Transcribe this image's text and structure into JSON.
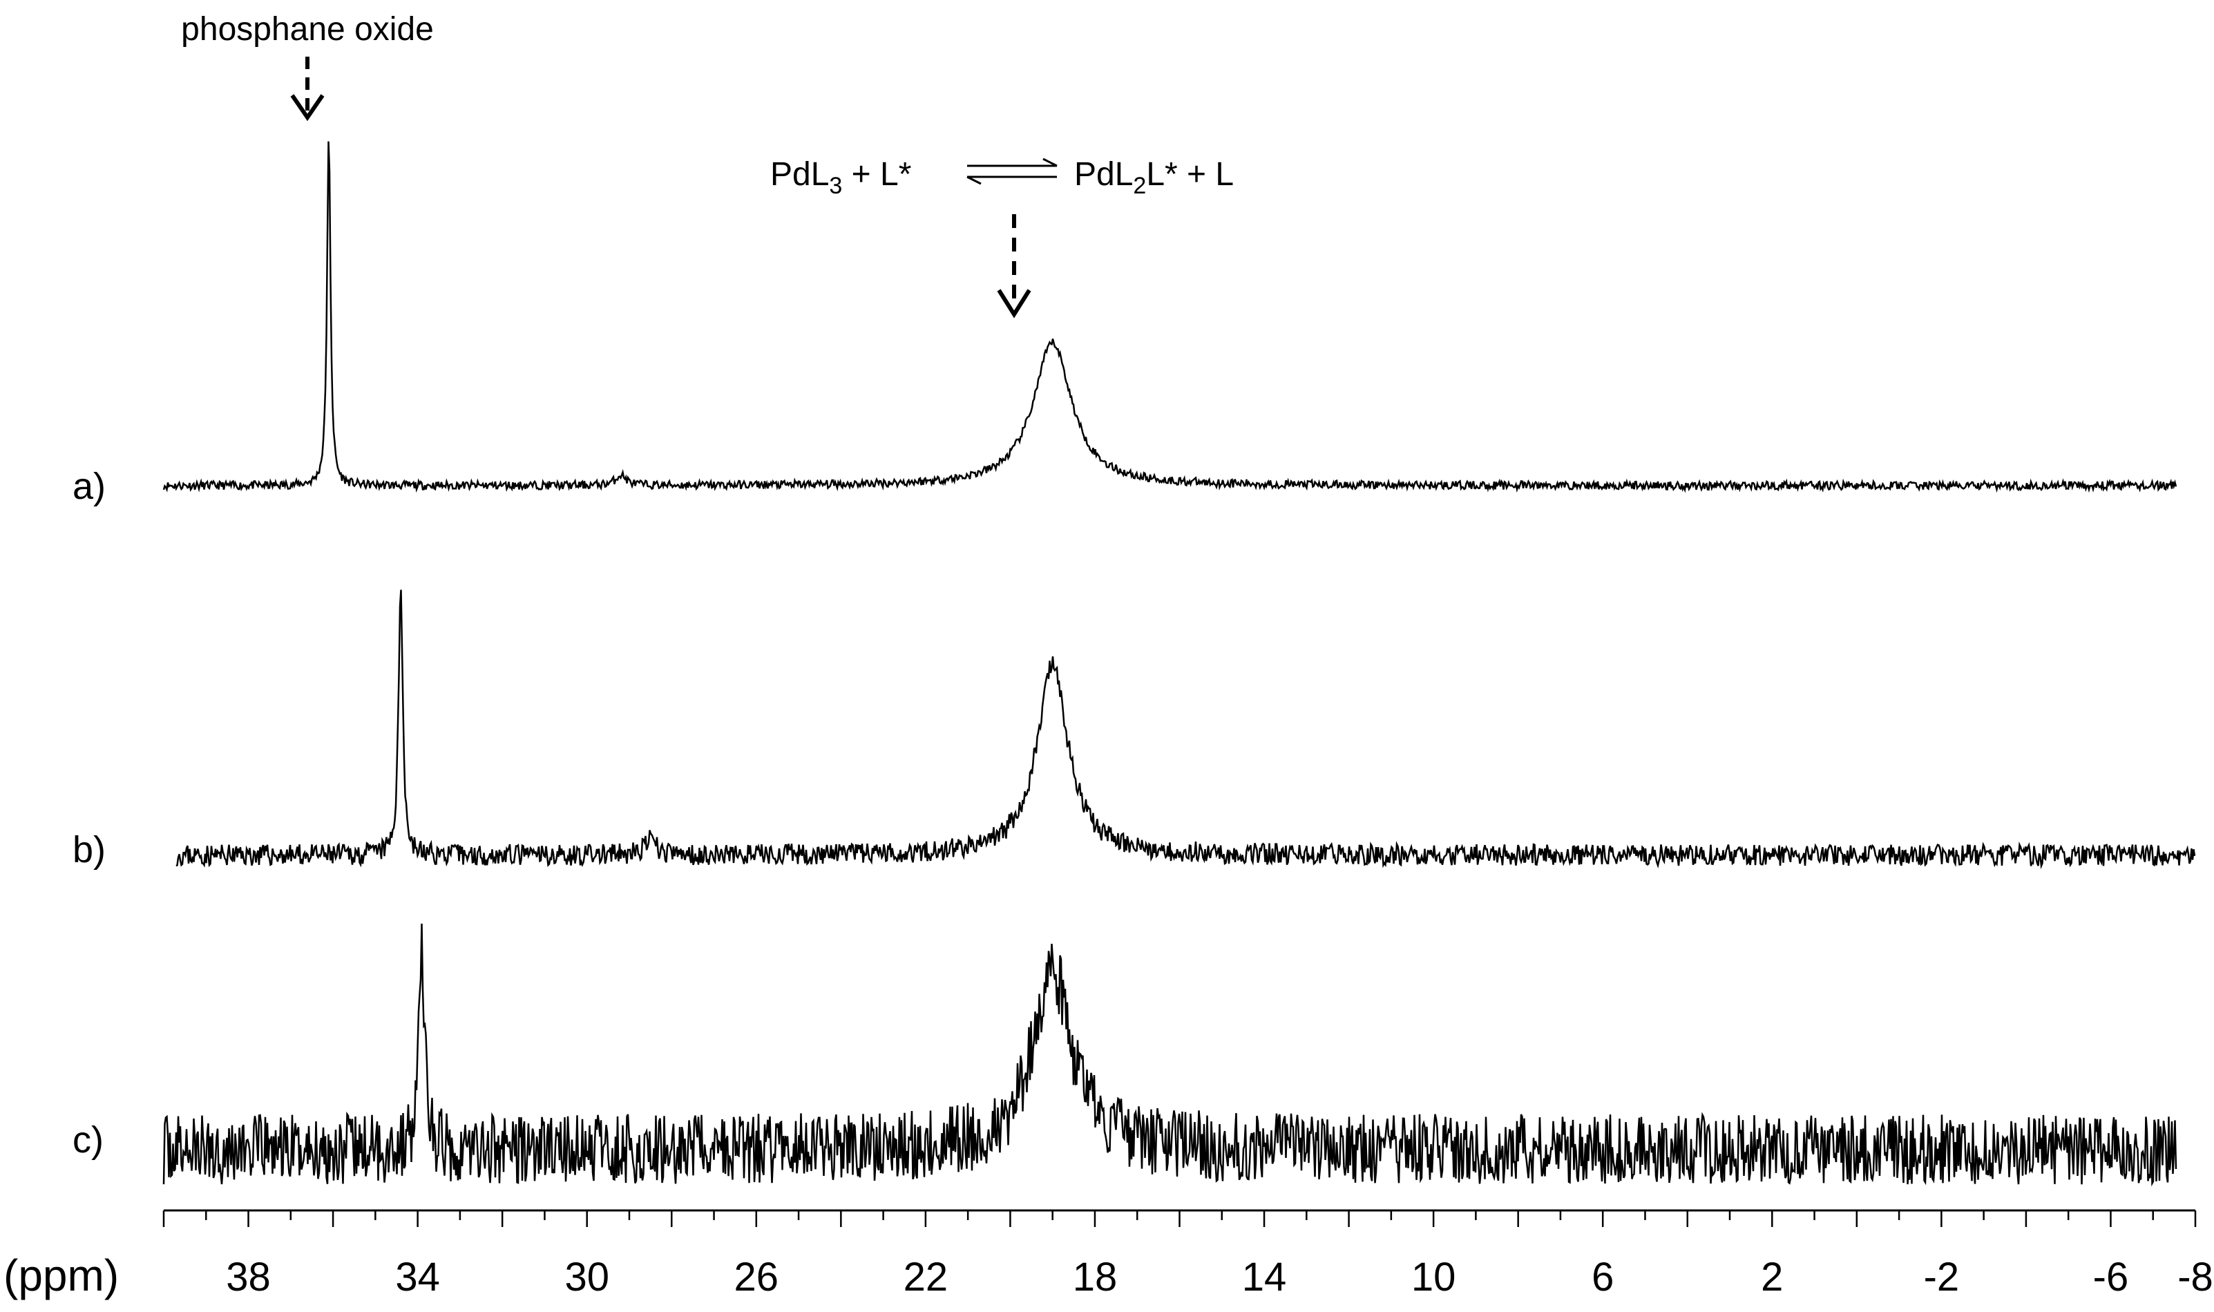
{
  "chart_data": {
    "type": "line",
    "title": "",
    "xlabel": "(ppm)",
    "ylabel": "",
    "xlim": [
      40,
      -8
    ],
    "x_reversed": true,
    "tick_labels": [
      "38",
      "34",
      "30",
      "26",
      "22",
      "18",
      "14",
      "10",
      "6",
      "2",
      "-2",
      "-6",
      "-8"
    ],
    "tick_values": [
      38,
      34,
      30,
      26,
      22,
      18,
      14,
      10,
      6,
      2,
      -2,
      -6,
      -8
    ],
    "grid": false,
    "series": [
      {
        "name": "a)",
        "noise": 0.012,
        "peaks": [
          {
            "ppm": 36.1,
            "height": 1.0,
            "width": 0.05
          },
          {
            "ppm": 19.0,
            "height": 0.41,
            "width": 0.55
          },
          {
            "ppm": 29.2,
            "height": 0.03,
            "width": 0.15
          }
        ]
      },
      {
        "name": "b)",
        "noise": 0.035,
        "peaks": [
          {
            "ppm": 34.4,
            "height": 0.9,
            "width": 0.06
          },
          {
            "ppm": 19.0,
            "height": 0.62,
            "width": 0.45
          },
          {
            "ppm": 28.5,
            "height": 0.05,
            "width": 0.15
          }
        ]
      },
      {
        "name": "c)",
        "noise": 0.09,
        "peaks": [
          {
            "ppm": 33.9,
            "height": 0.53,
            "width": 0.08
          },
          {
            "ppm": 19.0,
            "height": 0.46,
            "width": 0.55
          }
        ]
      }
    ],
    "annotations": [
      {
        "text": "phosphane oxide",
        "points_to_ppm": 36.1,
        "arrow": "dashed"
      },
      {
        "points_to_ppm": 19.0,
        "arrow": "dashed"
      }
    ],
    "equilibrium": {
      "left": {
        "base": "PdL",
        "sub": "3",
        "rest": " + L*"
      },
      "right": {
        "base": "PdL",
        "sub": "2",
        "rest": "L* + L"
      }
    }
  }
}
